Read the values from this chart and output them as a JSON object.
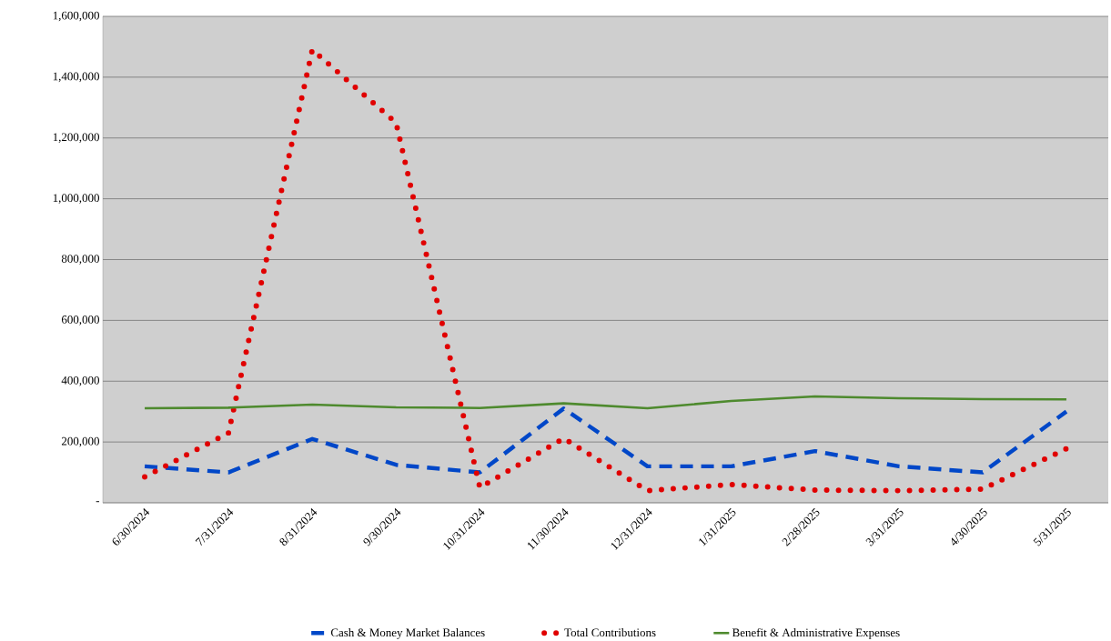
{
  "chart_data": {
    "type": "line",
    "categories": [
      "6/30/2024",
      "7/31/2024",
      "8/31/2024",
      "9/30/2024",
      "10/31/2024",
      "11/30/2024",
      "12/31/2024",
      "1/31/2025",
      "2/28/2025",
      "3/31/2025",
      "4/30/2025",
      "5/31/2025"
    ],
    "series": [
      {
        "name": "Cash & Money Market Balances",
        "color": "#0047c8",
        "line_style": "dashed",
        "values": [
          120000,
          100000,
          210000,
          125000,
          100000,
          310000,
          120000,
          120000,
          170000,
          120000,
          100000,
          300000
        ]
      },
      {
        "name": "Total Contributions",
        "color": "#e00000",
        "line_style": "dotted",
        "values": [
          85000,
          230000,
          1490000,
          1250000,
          50000,
          212000,
          40000,
          60000,
          42000,
          40000,
          45000,
          178000
        ]
      },
      {
        "name": "Benefit & Administrative Expenses",
        "color": "#4e8a2e",
        "line_style": "solid",
        "values": [
          311000,
          313000,
          323000,
          314000,
          312000,
          327000,
          311000,
          335000,
          350000,
          344000,
          341000,
          340000
        ]
      }
    ],
    "ylim": [
      0,
      1600000
    ],
    "yticks": [
      {
        "value": 0,
        "label": "-"
      },
      {
        "value": 200000,
        "label": "200,000"
      },
      {
        "value": 400000,
        "label": "400,000"
      },
      {
        "value": 600000,
        "label": "600,000"
      },
      {
        "value": 800000,
        "label": "800,000"
      },
      {
        "value": 1000000,
        "label": "1,000,000"
      },
      {
        "value": 1200000,
        "label": "1,200,000"
      },
      {
        "value": 1400000,
        "label": "1,400,000"
      },
      {
        "value": 1600000,
        "label": "1,600,000"
      }
    ],
    "grid": "y",
    "legend": "bottom"
  }
}
